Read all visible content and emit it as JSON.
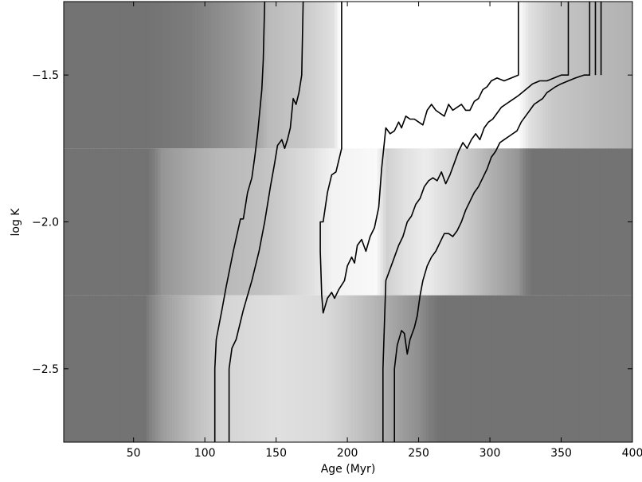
{
  "chart_data": {
    "type": "heatmap",
    "title": "",
    "xlabel": "Age (Myr)",
    "ylabel": "log K",
    "xlim": [
      1,
      400
    ],
    "ylim": [
      -2.75,
      -1.25
    ],
    "xticks": [
      50,
      100,
      150,
      200,
      250,
      300,
      350,
      400
    ],
    "yticks": [
      -1.5,
      -2.0,
      -2.5
    ],
    "xtick_labels": [
      "50",
      "100",
      "150",
      "200",
      "250",
      "300",
      "350",
      "400"
    ],
    "ytick_labels": [
      "−1.5",
      "−2.0",
      "−2.5"
    ],
    "grid": false,
    "colormap": "grayscale",
    "colors": {
      "background": "#ffffff",
      "contour": "#000000",
      "map_low": "#737373",
      "map_high": "#ffffff"
    },
    "bands": [
      {
        "y_range": [
          -1.75,
          -1.25
        ],
        "profile": [
          [
            1,
            0.55
          ],
          [
            60,
            0.55
          ],
          [
            90,
            0.58
          ],
          [
            120,
            0.66
          ],
          [
            138,
            0.72
          ],
          [
            145,
            0.78
          ],
          [
            168,
            0.82
          ],
          [
            190,
            0.9
          ],
          [
            195,
            1.0
          ],
          [
            320,
            1.0
          ],
          [
            328,
            0.9
          ],
          [
            345,
            0.82
          ],
          [
            380,
            0.77
          ],
          [
            400,
            0.75
          ]
        ]
      },
      {
        "y_range": [
          -2.25,
          -1.75
        ],
        "profile": [
          [
            1,
            0.55
          ],
          [
            60,
            0.55
          ],
          [
            64,
            0.58
          ],
          [
            70,
            0.66
          ],
          [
            90,
            0.72
          ],
          [
            110,
            0.77
          ],
          [
            140,
            0.8
          ],
          [
            175,
            0.9
          ],
          [
            190,
            0.96
          ],
          [
            220,
            0.98
          ],
          [
            228,
            0.85
          ],
          [
            240,
            0.9
          ],
          [
            255,
            0.94
          ],
          [
            280,
            0.85
          ],
          [
            300,
            0.75
          ],
          [
            320,
            0.66
          ],
          [
            325,
            0.58
          ],
          [
            330,
            0.55
          ],
          [
            400,
            0.55
          ]
        ]
      },
      {
        "y_range": [
          -2.75,
          -2.25
        ],
        "profile": [
          [
            1,
            0.55
          ],
          [
            58,
            0.55
          ],
          [
            62,
            0.6
          ],
          [
            70,
            0.68
          ],
          [
            90,
            0.78
          ],
          [
            110,
            0.86
          ],
          [
            150,
            0.9
          ],
          [
            185,
            0.88
          ],
          [
            195,
            0.85
          ],
          [
            220,
            0.76
          ],
          [
            235,
            0.7
          ],
          [
            250,
            0.64
          ],
          [
            258,
            0.58
          ],
          [
            265,
            0.55
          ],
          [
            400,
            0.55
          ]
        ]
      }
    ],
    "contours": [
      {
        "level": "c1",
        "points": [
          [
            107,
            -2.75
          ],
          [
            107,
            -2.5
          ],
          [
            108,
            -2.4
          ],
          [
            112,
            -2.3
          ],
          [
            115,
            -2.22
          ],
          [
            120,
            -2.1
          ],
          [
            125,
            -1.99
          ],
          [
            127,
            -1.99
          ],
          [
            130,
            -1.9
          ],
          [
            133,
            -1.85
          ],
          [
            135,
            -1.78
          ],
          [
            137,
            -1.7
          ],
          [
            140,
            -1.55
          ],
          [
            141,
            -1.45
          ],
          [
            142,
            -1.25
          ]
        ]
      },
      {
        "level": "c2",
        "points": [
          [
            117,
            -2.75
          ],
          [
            117,
            -2.5
          ],
          [
            119,
            -2.43
          ],
          [
            122,
            -2.4
          ],
          [
            127,
            -2.3
          ],
          [
            133,
            -2.2
          ],
          [
            138,
            -2.1
          ],
          [
            142,
            -2.0
          ],
          [
            146,
            -1.88
          ],
          [
            149,
            -1.8
          ],
          [
            151,
            -1.74
          ],
          [
            154,
            -1.72
          ],
          [
            156,
            -1.75
          ],
          [
            158,
            -1.72
          ],
          [
            160,
            -1.68
          ],
          [
            162,
            -1.58
          ],
          [
            164,
            -1.6
          ],
          [
            166,
            -1.56
          ],
          [
            168,
            -1.5
          ],
          [
            169,
            -1.25
          ]
        ]
      },
      {
        "level": "c3",
        "points": [
          [
            196,
            -1.25
          ],
          [
            196,
            -1.75
          ],
          [
            192,
            -1.83
          ],
          [
            189,
            -1.84
          ],
          [
            186,
            -1.9
          ],
          [
            183,
            -2.0
          ],
          [
            181,
            -2.0
          ],
          [
            181,
            -2.1
          ],
          [
            182,
            -2.25
          ],
          [
            183,
            -2.31
          ],
          [
            186,
            -2.26
          ],
          [
            189,
            -2.24
          ],
          [
            191,
            -2.26
          ],
          [
            194,
            -2.23
          ],
          [
            198,
            -2.2
          ],
          [
            200,
            -2.15
          ],
          [
            203,
            -2.12
          ],
          [
            205,
            -2.14
          ],
          [
            207,
            -2.08
          ],
          [
            210,
            -2.06
          ],
          [
            213,
            -2.1
          ],
          [
            216,
            -2.05
          ],
          [
            219,
            -2.02
          ],
          [
            222,
            -1.95
          ],
          [
            224,
            -1.82
          ],
          [
            227,
            -1.68
          ],
          [
            230,
            -1.7
          ],
          [
            233,
            -1.69
          ],
          [
            236,
            -1.66
          ],
          [
            238,
            -1.68
          ],
          [
            241,
            -1.64
          ],
          [
            244,
            -1.65
          ],
          [
            247,
            -1.65
          ],
          [
            250,
            -1.66
          ],
          [
            253,
            -1.67
          ],
          [
            256,
            -1.62
          ],
          [
            259,
            -1.6
          ],
          [
            262,
            -1.62
          ],
          [
            265,
            -1.63
          ],
          [
            268,
            -1.64
          ],
          [
            271,
            -1.6
          ],
          [
            274,
            -1.62
          ],
          [
            277,
            -1.61
          ],
          [
            280,
            -1.6
          ],
          [
            283,
            -1.62
          ],
          [
            286,
            -1.62
          ],
          [
            289,
            -1.59
          ],
          [
            292,
            -1.58
          ],
          [
            295,
            -1.55
          ],
          [
            298,
            -1.54
          ],
          [
            301,
            -1.52
          ],
          [
            305,
            -1.51
          ],
          [
            310,
            -1.52
          ],
          [
            315,
            -1.51
          ],
          [
            320,
            -1.5
          ],
          [
            320,
            -1.25
          ]
        ]
      },
      {
        "level": "c4",
        "points": [
          [
            225,
            -2.75
          ],
          [
            225,
            -2.5
          ],
          [
            226,
            -2.35
          ],
          [
            227,
            -2.2
          ],
          [
            230,
            -2.16
          ],
          [
            233,
            -2.12
          ],
          [
            236,
            -2.08
          ],
          [
            239,
            -2.05
          ],
          [
            242,
            -2.0
          ],
          [
            245,
            -1.98
          ],
          [
            248,
            -1.94
          ],
          [
            251,
            -1.92
          ],
          [
            254,
            -1.88
          ],
          [
            257,
            -1.86
          ],
          [
            260,
            -1.85
          ],
          [
            263,
            -1.86
          ],
          [
            266,
            -1.83
          ],
          [
            269,
            -1.87
          ],
          [
            272,
            -1.84
          ],
          [
            275,
            -1.8
          ],
          [
            278,
            -1.76
          ],
          [
            281,
            -1.73
          ],
          [
            284,
            -1.75
          ],
          [
            287,
            -1.72
          ],
          [
            290,
            -1.7
          ],
          [
            293,
            -1.72
          ],
          [
            296,
            -1.68
          ],
          [
            299,
            -1.66
          ],
          [
            302,
            -1.65
          ],
          [
            305,
            -1.63
          ],
          [
            308,
            -1.61
          ],
          [
            311,
            -1.6
          ],
          [
            314,
            -1.59
          ],
          [
            317,
            -1.58
          ],
          [
            320,
            -1.57
          ],
          [
            325,
            -1.55
          ],
          [
            330,
            -1.53
          ],
          [
            335,
            -1.52
          ],
          [
            340,
            -1.52
          ],
          [
            345,
            -1.51
          ],
          [
            350,
            -1.5
          ],
          [
            355,
            -1.5
          ],
          [
            355,
            -1.25
          ]
        ]
      },
      {
        "level": "c5",
        "points": [
          [
            233,
            -2.75
          ],
          [
            233,
            -2.5
          ],
          [
            235,
            -2.42
          ],
          [
            238,
            -2.37
          ],
          [
            240,
            -2.38
          ],
          [
            242,
            -2.45
          ],
          [
            244,
            -2.4
          ],
          [
            247,
            -2.36
          ],
          [
            249,
            -2.32
          ],
          [
            251,
            -2.25
          ],
          [
            253,
            -2.2
          ],
          [
            256,
            -2.15
          ],
          [
            259,
            -2.12
          ],
          [
            262,
            -2.1
          ],
          [
            265,
            -2.07
          ],
          [
            268,
            -2.04
          ],
          [
            271,
            -2.04
          ],
          [
            274,
            -2.05
          ],
          [
            277,
            -2.03
          ],
          [
            280,
            -2.0
          ],
          [
            283,
            -1.96
          ],
          [
            286,
            -1.93
          ],
          [
            289,
            -1.9
          ],
          [
            292,
            -1.88
          ],
          [
            295,
            -1.85
          ],
          [
            298,
            -1.82
          ],
          [
            301,
            -1.78
          ],
          [
            304,
            -1.76
          ],
          [
            307,
            -1.73
          ],
          [
            310,
            -1.72
          ],
          [
            313,
            -1.71
          ],
          [
            316,
            -1.7
          ],
          [
            319,
            -1.69
          ],
          [
            322,
            -1.66
          ],
          [
            325,
            -1.64
          ],
          [
            328,
            -1.62
          ],
          [
            331,
            -1.6
          ],
          [
            334,
            -1.59
          ],
          [
            337,
            -1.58
          ],
          [
            340,
            -1.56
          ],
          [
            343,
            -1.55
          ],
          [
            346,
            -1.54
          ],
          [
            350,
            -1.53
          ],
          [
            355,
            -1.52
          ],
          [
            360,
            -1.51
          ],
          [
            366,
            -1.5
          ],
          [
            370,
            -1.5
          ],
          [
            370,
            -1.25
          ]
        ]
      },
      {
        "level": "c6",
        "points": [
          [
            374,
            -1.25
          ],
          [
            374,
            -1.5
          ]
        ]
      },
      {
        "level": "c7",
        "points": [
          [
            378,
            -1.25
          ],
          [
            378,
            -1.5
          ]
        ]
      }
    ]
  }
}
